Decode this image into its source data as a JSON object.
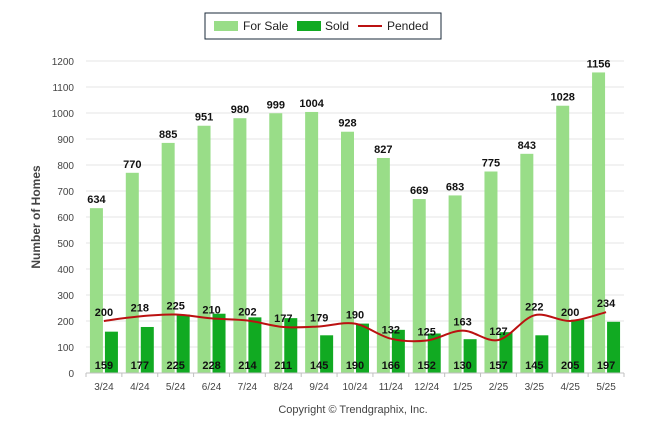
{
  "chart_data": {
    "type": "bar",
    "categories": [
      "3/24",
      "4/24",
      "5/24",
      "6/24",
      "7/24",
      "8/24",
      "9/24",
      "10/24",
      "11/24",
      "12/24",
      "1/25",
      "2/25",
      "3/25",
      "4/25",
      "5/25"
    ],
    "series": [
      {
        "name": "For Sale",
        "type": "bar",
        "color": "#99dd88",
        "values": [
          634,
          770,
          885,
          951,
          980,
          999,
          1004,
          928,
          827,
          669,
          683,
          775,
          843,
          1028,
          1156
        ]
      },
      {
        "name": "Sold",
        "type": "bar",
        "color": "#11aa22",
        "values": [
          159,
          177,
          225,
          228,
          214,
          211,
          145,
          190,
          166,
          152,
          130,
          157,
          145,
          205,
          197
        ]
      },
      {
        "name": "Pended",
        "type": "line",
        "color": "#bb1111",
        "values": [
          200,
          218,
          225,
          210,
          202,
          177,
          179,
          190,
          132,
          125,
          163,
          127,
          222,
          200,
          234
        ]
      }
    ],
    "xlabel": "",
    "ylabel": "Number of Homes",
    "ylim": [
      0,
      1200
    ],
    "yticks": [
      0,
      100,
      200,
      300,
      400,
      500,
      600,
      700,
      800,
      900,
      1000,
      1100,
      1200
    ],
    "grid": true,
    "legend": "top-center"
  },
  "credit": "Copyright © Trendgraphix, Inc."
}
